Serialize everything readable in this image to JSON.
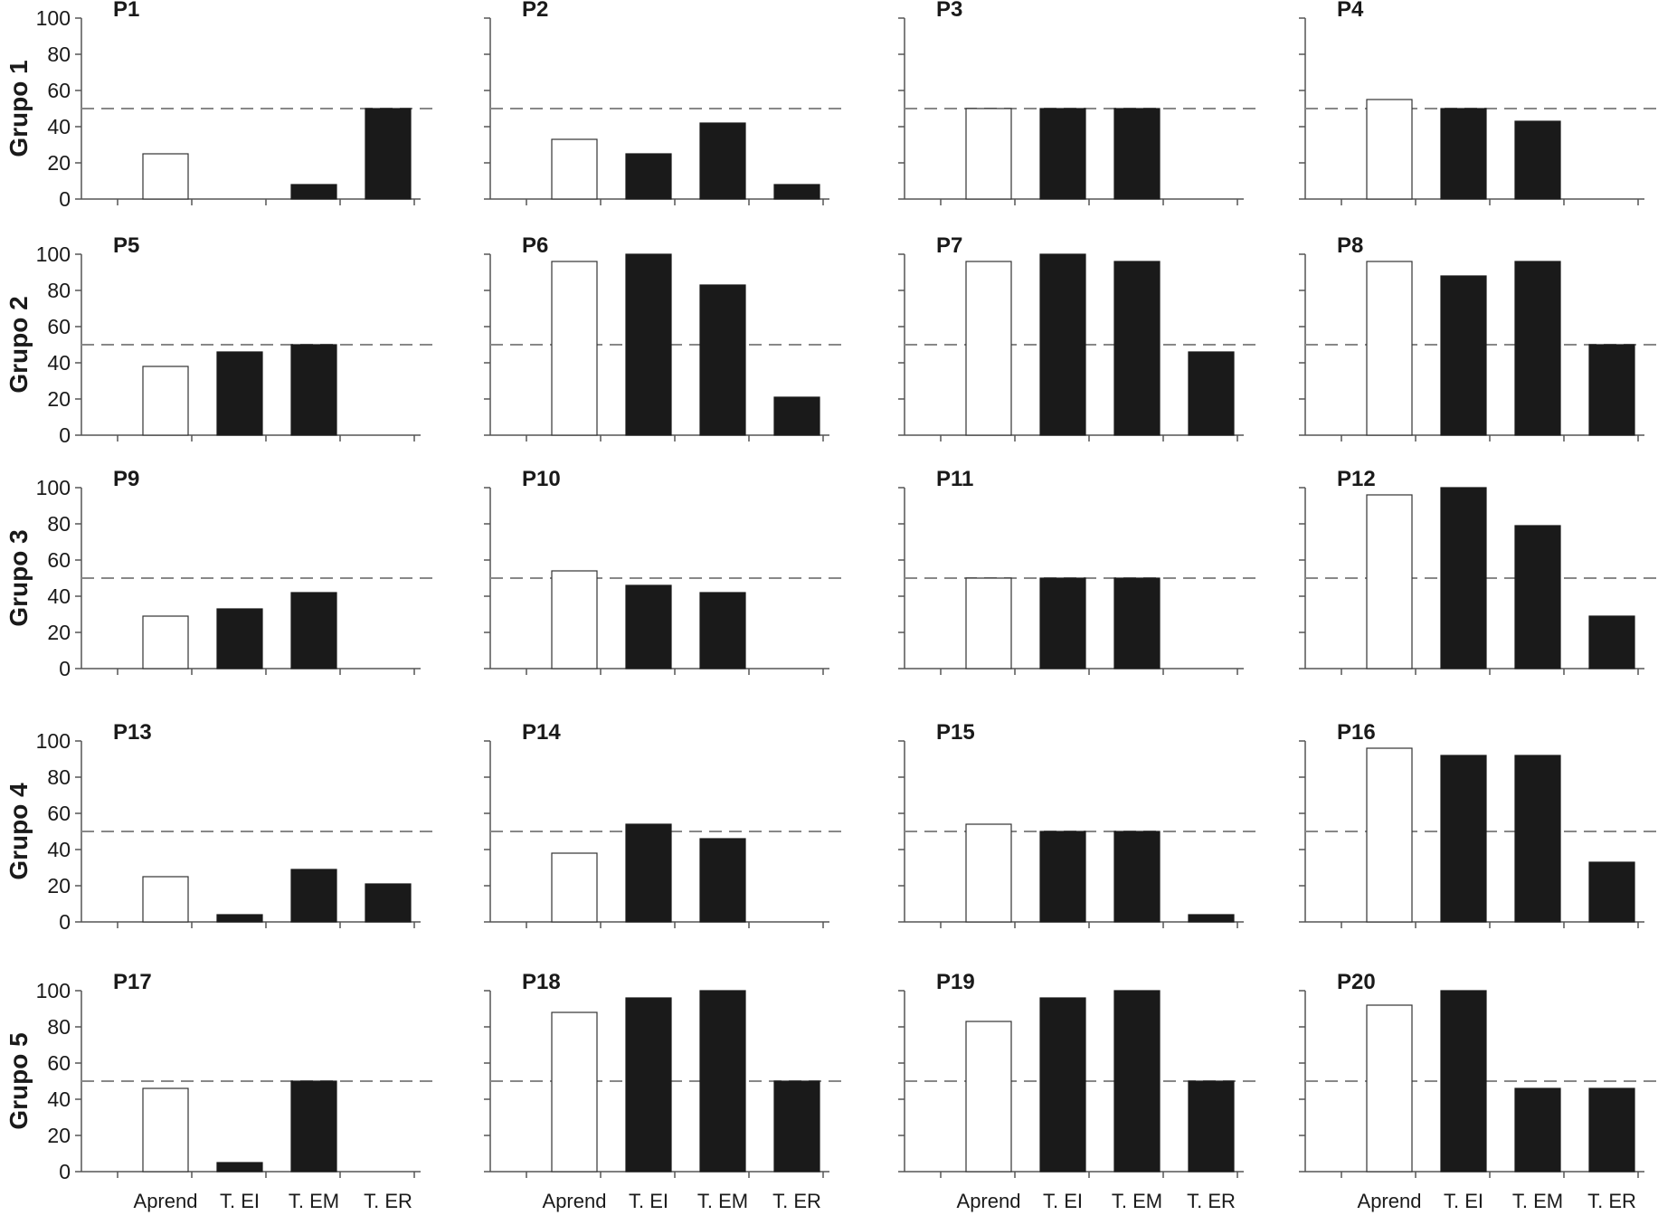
{
  "categories": [
    "Aprend",
    "T. EI",
    "T. EM",
    "T. ER"
  ],
  "y_ticks": [
    "0",
    "20",
    "40",
    "60",
    "80",
    "100"
  ],
  "colors": {
    "aprend_fill": "#ffffff",
    "test_fill": "#1a1a1a",
    "axis": "#555555",
    "reference_line": "#888888"
  },
  "groups": [
    {
      "label": "Grupo 1"
    },
    {
      "label": "Grupo 2"
    },
    {
      "label": "Grupo 3"
    },
    {
      "label": "Grupo 4"
    },
    {
      "label": "Grupo 5"
    }
  ],
  "chart_data": [
    {
      "type": "bar",
      "title": "P1",
      "group": "Grupo 1",
      "categories": [
        "Aprend",
        "T. EI",
        "T. EM",
        "T. ER"
      ],
      "values": [
        25,
        0,
        8,
        50
      ],
      "reference_line": 50,
      "ylim": [
        0,
        100
      ]
    },
    {
      "type": "bar",
      "title": "P2",
      "group": "Grupo 1",
      "categories": [
        "Aprend",
        "T. EI",
        "T. EM",
        "T. ER"
      ],
      "values": [
        33,
        25,
        42,
        8
      ],
      "reference_line": 50,
      "ylim": [
        0,
        100
      ]
    },
    {
      "type": "bar",
      "title": "P3",
      "group": "Grupo 1",
      "categories": [
        "Aprend",
        "T. EI",
        "T. EM",
        "T. ER"
      ],
      "values": [
        50,
        50,
        50,
        0
      ],
      "reference_line": 50,
      "ylim": [
        0,
        100
      ]
    },
    {
      "type": "bar",
      "title": "P4",
      "group": "Grupo 1",
      "categories": [
        "Aprend",
        "T. EI",
        "T. EM",
        "T. ER"
      ],
      "values": [
        55,
        50,
        43,
        0
      ],
      "reference_line": 50,
      "ylim": [
        0,
        100
      ]
    },
    {
      "type": "bar",
      "title": "P5",
      "group": "Grupo 2",
      "categories": [
        "Aprend",
        "T. EI",
        "T. EM",
        "T. ER"
      ],
      "values": [
        38,
        46,
        50,
        0
      ],
      "reference_line": 50,
      "ylim": [
        0,
        100
      ]
    },
    {
      "type": "bar",
      "title": "P6",
      "group": "Grupo 2",
      "categories": [
        "Aprend",
        "T. EI",
        "T. EM",
        "T. ER"
      ],
      "values": [
        96,
        100,
        83,
        21
      ],
      "reference_line": 50,
      "ylim": [
        0,
        100
      ]
    },
    {
      "type": "bar",
      "title": "P7",
      "group": "Grupo 2",
      "categories": [
        "Aprend",
        "T. EI",
        "T. EM",
        "T. ER"
      ],
      "values": [
        96,
        100,
        96,
        46
      ],
      "reference_line": 50,
      "ylim": [
        0,
        100
      ]
    },
    {
      "type": "bar",
      "title": "P8",
      "group": "Grupo 2",
      "categories": [
        "Aprend",
        "T. EI",
        "T. EM",
        "T. ER"
      ],
      "values": [
        96,
        88,
        96,
        50
      ],
      "reference_line": 50,
      "ylim": [
        0,
        100
      ]
    },
    {
      "type": "bar",
      "title": "P9",
      "group": "Grupo 3",
      "categories": [
        "Aprend",
        "T. EI",
        "T. EM",
        "T. ER"
      ],
      "values": [
        29,
        33,
        42,
        0
      ],
      "reference_line": 50,
      "ylim": [
        0,
        100
      ]
    },
    {
      "type": "bar",
      "title": "P10",
      "group": "Grupo 3",
      "categories": [
        "Aprend",
        "T. EI",
        "T. EM",
        "T. ER"
      ],
      "values": [
        54,
        46,
        42,
        0
      ],
      "reference_line": 50,
      "ylim": [
        0,
        100
      ]
    },
    {
      "type": "bar",
      "title": "P11",
      "group": "Grupo 3",
      "categories": [
        "Aprend",
        "T. EI",
        "T. EM",
        "T. ER"
      ],
      "values": [
        50,
        50,
        50,
        0
      ],
      "reference_line": 50,
      "ylim": [
        0,
        100
      ]
    },
    {
      "type": "bar",
      "title": "P12",
      "group": "Grupo 3",
      "categories": [
        "Aprend",
        "T. EI",
        "T. EM",
        "T. ER"
      ],
      "values": [
        96,
        100,
        79,
        29
      ],
      "reference_line": 50,
      "ylim": [
        0,
        100
      ]
    },
    {
      "type": "bar",
      "title": "P13",
      "group": "Grupo 4",
      "categories": [
        "Aprend",
        "T. EI",
        "T. EM",
        "T. ER"
      ],
      "values": [
        25,
        4,
        29,
        21
      ],
      "reference_line": 50,
      "ylim": [
        0,
        100
      ]
    },
    {
      "type": "bar",
      "title": "P14",
      "group": "Grupo 4",
      "categories": [
        "Aprend",
        "T. EI",
        "T. EM",
        "T. ER"
      ],
      "values": [
        38,
        54,
        46,
        0
      ],
      "reference_line": 50,
      "ylim": [
        0,
        100
      ]
    },
    {
      "type": "bar",
      "title": "P15",
      "group": "Grupo 4",
      "categories": [
        "Aprend",
        "T. EI",
        "T. EM",
        "T. ER"
      ],
      "values": [
        54,
        50,
        50,
        4
      ],
      "reference_line": 50,
      "ylim": [
        0,
        100
      ]
    },
    {
      "type": "bar",
      "title": "P16",
      "group": "Grupo 4",
      "categories": [
        "Aprend",
        "T. EI",
        "T. EM",
        "T. ER"
      ],
      "values": [
        96,
        92,
        92,
        33
      ],
      "reference_line": 50,
      "ylim": [
        0,
        100
      ]
    },
    {
      "type": "bar",
      "title": "P17",
      "group": "Grupo 5",
      "categories": [
        "Aprend",
        "T. EI",
        "T. EM",
        "T. ER"
      ],
      "values": [
        46,
        5,
        50,
        0
      ],
      "reference_line": 50,
      "ylim": [
        0,
        100
      ]
    },
    {
      "type": "bar",
      "title": "P18",
      "group": "Grupo 5",
      "categories": [
        "Aprend",
        "T. EI",
        "T. EM",
        "T. ER"
      ],
      "values": [
        88,
        96,
        100,
        50
      ],
      "reference_line": 50,
      "ylim": [
        0,
        100
      ]
    },
    {
      "type": "bar",
      "title": "P19",
      "group": "Grupo 5",
      "categories": [
        "Aprend",
        "T. EI",
        "T. EM",
        "T. ER"
      ],
      "values": [
        83,
        96,
        100,
        50
      ],
      "reference_line": 50,
      "ylim": [
        0,
        100
      ]
    },
    {
      "type": "bar",
      "title": "P20",
      "group": "Grupo 5",
      "categories": [
        "Aprend",
        "T. EI",
        "T. EM",
        "T. ER"
      ],
      "values": [
        92,
        100,
        46,
        46
      ],
      "reference_line": 50,
      "ylim": [
        0,
        100
      ]
    }
  ]
}
